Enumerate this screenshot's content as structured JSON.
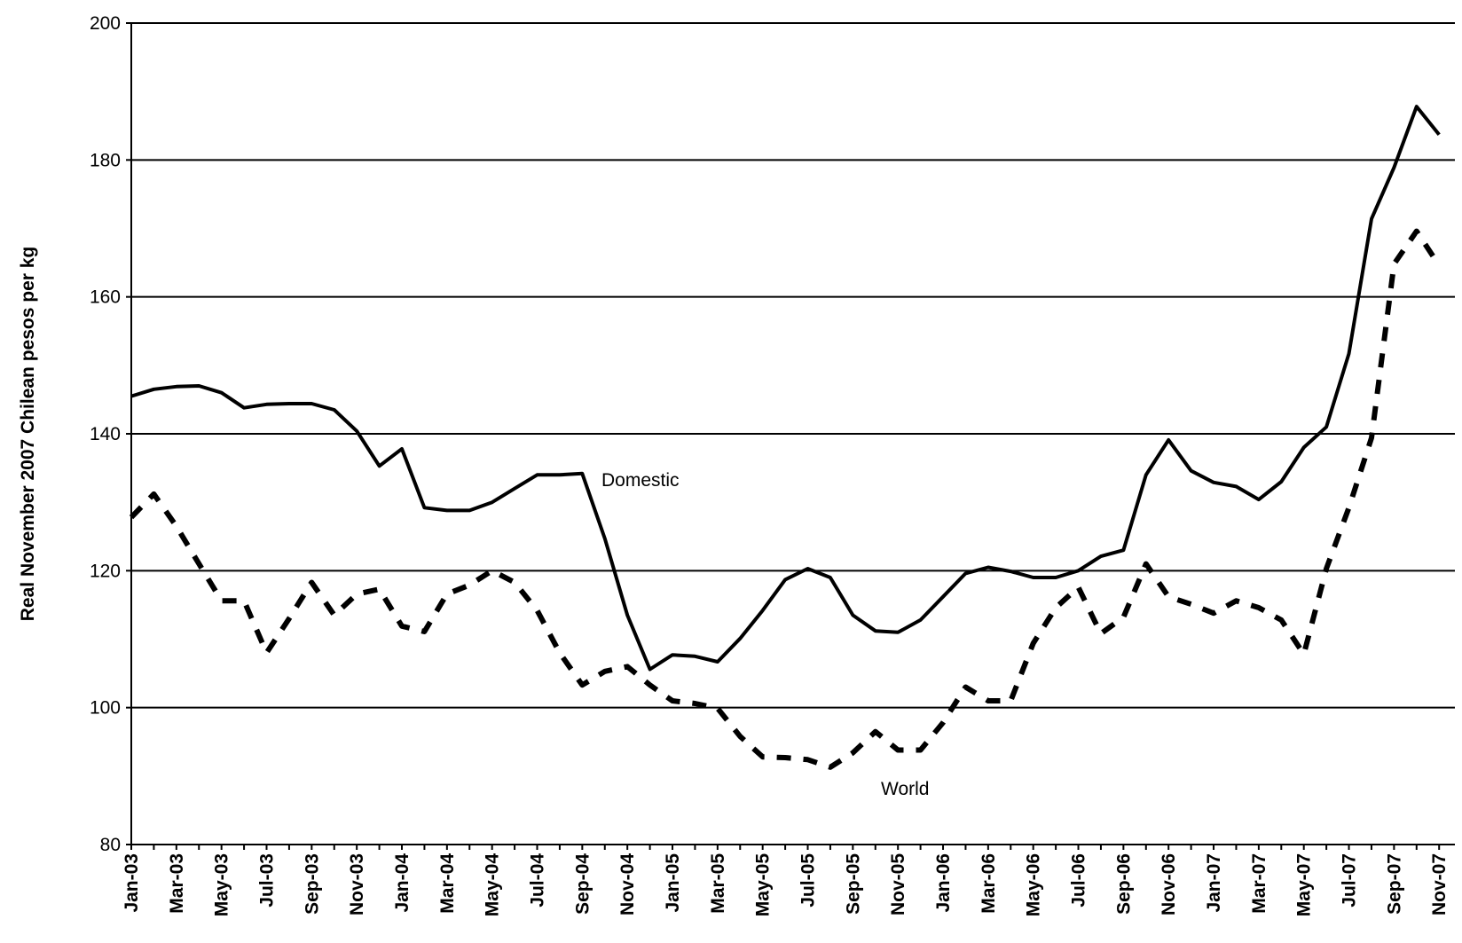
{
  "chart_data": {
    "type": "line",
    "y_label": "Real November 2007 Chilean pesos per kg",
    "annotations": [
      "Domestic",
      "World"
    ],
    "categories": [
      "Jan-03",
      null,
      "Mar-03",
      null,
      "May-03",
      null,
      "Jul-03",
      null,
      "Sep-03",
      null,
      "Nov-03",
      null,
      "Jan-04",
      null,
      "Mar-04",
      null,
      "May-04",
      null,
      "Jul-04",
      null,
      "Sep-04",
      null,
      "Nov-04",
      null,
      "Jan-05",
      null,
      "Mar-05",
      null,
      "May-05",
      null,
      "Jul-05",
      null,
      "Sep-05",
      null,
      "Nov-05",
      null,
      "Jan-06",
      null,
      "Mar-06",
      null,
      "May-06",
      null,
      "Jul-06",
      null,
      "Sep-06",
      null,
      "Nov-06",
      null,
      "Jan-07",
      null,
      "Mar-07",
      null,
      "May-07",
      null,
      "Jul-07",
      null,
      "Sep-07",
      null,
      "Nov-07"
    ],
    "series": [
      {
        "name": "Domestic",
        "color": "#000000",
        "dashed": false,
        "values": [
          145.5,
          146.5,
          146.9,
          147,
          146,
          143.8,
          144.3,
          144.4,
          144.4,
          143.5,
          140.4,
          135.3,
          137.8,
          129.2,
          128.8,
          128.8,
          130,
          132,
          134,
          134,
          134.2,
          124.7,
          113.5,
          105.6,
          107.7,
          107.5,
          106.7,
          110.1,
          114.2,
          118.7,
          120.3,
          119,
          113.5,
          111.2,
          111,
          112.8,
          116.2,
          119.6,
          120.5,
          119.9,
          119,
          119,
          120,
          122.1,
          123,
          134,
          139.1,
          134.6,
          132.9,
          132.3,
          130.4,
          133,
          138,
          141,
          151.7,
          171.4,
          178.9,
          187.8,
          183.7
        ]
      },
      {
        "name": "World",
        "color": "#000000",
        "dashed": true,
        "values": [
          127.8,
          131.2,
          126.5,
          121,
          115.6,
          115.6,
          108,
          113,
          118.3,
          113.5,
          116.6,
          117.3,
          111.9,
          111.1,
          116.6,
          117.9,
          120,
          118.3,
          114.2,
          108,
          103.3,
          105.3,
          106,
          103.3,
          101,
          100.6,
          99.9,
          95.8,
          92.8,
          92.7,
          92.4,
          91.3,
          93.4,
          96.5,
          93.8,
          93.8,
          97.8,
          103,
          101,
          101,
          109.4,
          114.6,
          117.6,
          110.8,
          113.2,
          121,
          116.2,
          115.1,
          113.8,
          115.6,
          114.6,
          112.8,
          107.8,
          120.3,
          129.2,
          139.4,
          164.8,
          169.6,
          164.6
        ]
      }
    ],
    "ylim": [
      80,
      200
    ],
    "yticks": [
      80,
      100,
      120,
      140,
      160,
      180,
      200
    ],
    "grid": true
  }
}
